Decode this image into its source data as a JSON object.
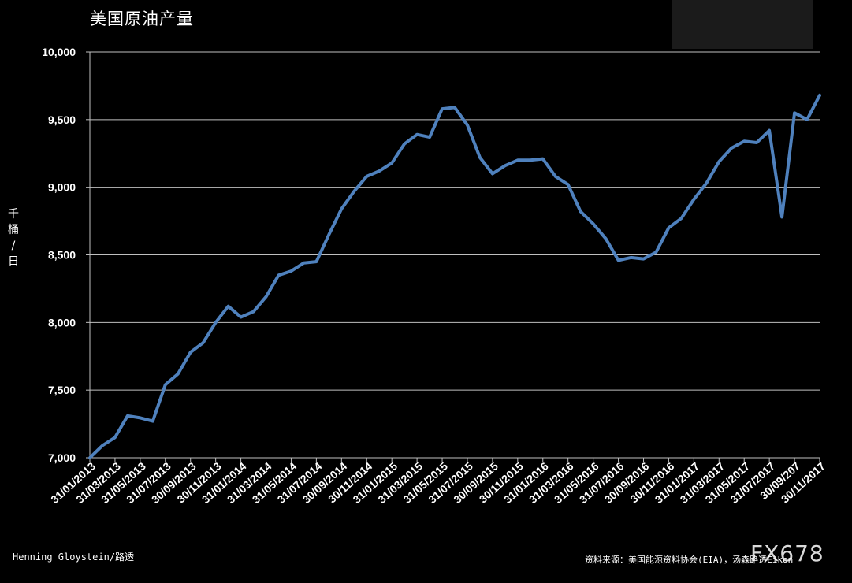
{
  "chart_data": {
    "type": "line",
    "title": "美国原油产量",
    "ylabel": "千桶/日",
    "ylim": [
      7000,
      10000
    ],
    "yticks": [
      "7,000",
      "7,500",
      "8,000",
      "8,500",
      "9,000",
      "9,500",
      "10,000"
    ],
    "ytick_values": [
      7000,
      7500,
      8000,
      8500,
      9000,
      9500,
      10000
    ],
    "xtick_labels": [
      "31/01/2013",
      "31/03/2013",
      "31/05/2013",
      "31/07/2013",
      "30/09/2013",
      "30/11/2013",
      "31/01/2014",
      "31/03/2014",
      "31/05/2014",
      "31/07/2014",
      "30/09/2014",
      "30/11/2014",
      "31/01/2015",
      "31/03/2015",
      "31/05/2015",
      "31/07/2015",
      "30/09/2015",
      "30/11/2015",
      "31/01/2016",
      "31/03/2016",
      "31/05/2016",
      "31/07/2016",
      "30/09/2016",
      "30/11/2016",
      "31/01/2017",
      "31/03/2017",
      "31/05/2017",
      "31/07/2017",
      "30/09/207",
      "30/11/2017"
    ],
    "grid": true,
    "series": [
      {
        "color": "#4f81bd",
        "values": [
          7000,
          7090,
          7150,
          7310,
          7295,
          7270,
          7540,
          7620,
          7780,
          7850,
          8000,
          8120,
          8040,
          8080,
          8190,
          8350,
          8380,
          8440,
          8450,
          8650,
          8840,
          8970,
          9080,
          9120,
          9180,
          9320,
          9390,
          9370,
          9580,
          9590,
          9460,
          9220,
          9100,
          9160,
          9200,
          9200,
          9210,
          9080,
          9020,
          8820,
          8730,
          8620,
          8460,
          8480,
          8470,
          8520,
          8700,
          8770,
          8910,
          9030,
          9190,
          9290,
          9340,
          9330,
          9420,
          8780,
          9550,
          9500,
          9680
        ]
      }
    ]
  },
  "footer": {
    "author": "Henning Gloystein/路透",
    "source": "资料来源：美国能源资料协会(EIA)，汤森路透Eikon",
    "watermark": "FX678"
  },
  "colors": {
    "background": "#000000",
    "line": "#4f81bd",
    "grid": "#bfbfbf",
    "text": "#ffffff"
  }
}
